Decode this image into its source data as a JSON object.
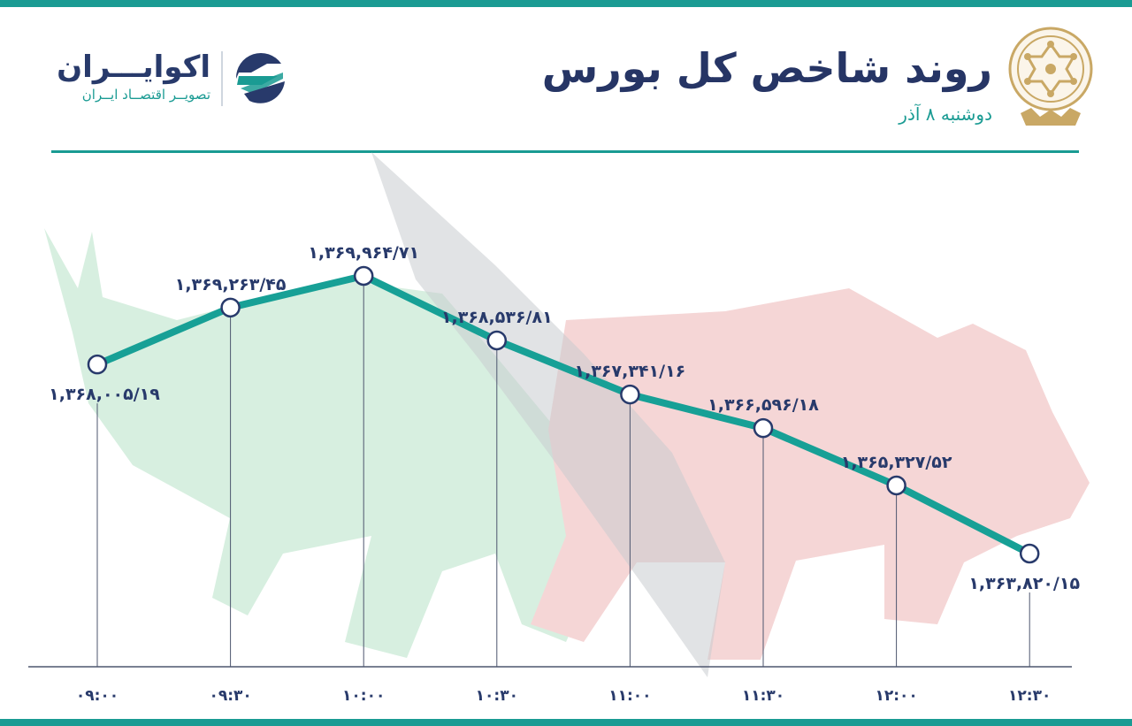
{
  "header": {
    "title": "روند شاخص کل بورس",
    "date": "دوشنبه ۸ آذر",
    "brand_name": "اکوایـــران",
    "brand_tagline": "تصویــر اقتصــاد ایــران"
  },
  "icons": {
    "brand_mark": "ecoiran-logo-icon",
    "emblem": "tehran-stock-exchange-emblem-icon",
    "background": "bull-and-bear-silhouette"
  },
  "colors": {
    "accent": "#1a9b93",
    "title": "#263565",
    "labels": "#283a6b",
    "line": "#17a096",
    "bull": "#d7efe0",
    "bear": "#f5d6d6"
  },
  "chart_data": {
    "type": "line",
    "categories": [
      "۰۹:۰۰",
      "۰۹:۳۰",
      "۱۰:۰۰",
      "۱۰:۳۰",
      "۱۱:۰۰",
      "۱۱:۳۰",
      "۱۲:۰۰",
      "۱۲:۳۰"
    ],
    "x": [
      "09:00",
      "09:30",
      "10:00",
      "10:30",
      "11:00",
      "11:30",
      "12:00",
      "12:30"
    ],
    "values": [
      1368005.19,
      1369263.45,
      1369964.71,
      1368536.81,
      1367341.16,
      1366596.18,
      1365327.52,
      1363820.15
    ],
    "value_labels": [
      "۱,۳۶۸,۰۰۵/۱۹",
      "۱,۳۶۹,۲۶۳/۴۵",
      "۱,۳۶۹,۹۶۴/۷۱",
      "۱,۳۶۸,۵۳۶/۸۱",
      "۱,۳۶۷,۳۴۱/۱۶",
      "۱,۳۶۶,۵۹۶/۱۸",
      "۱,۳۶۵,۳۲۷/۵۲",
      "۱,۳۶۳,۸۲۰/۱۵"
    ],
    "label_side": [
      "below",
      "above",
      "above",
      "above",
      "above",
      "above",
      "above",
      "below"
    ],
    "title": "روند شاخص کل بورس",
    "xlabel": "",
    "ylabel": "",
    "grid": false,
    "legend": "none"
  }
}
